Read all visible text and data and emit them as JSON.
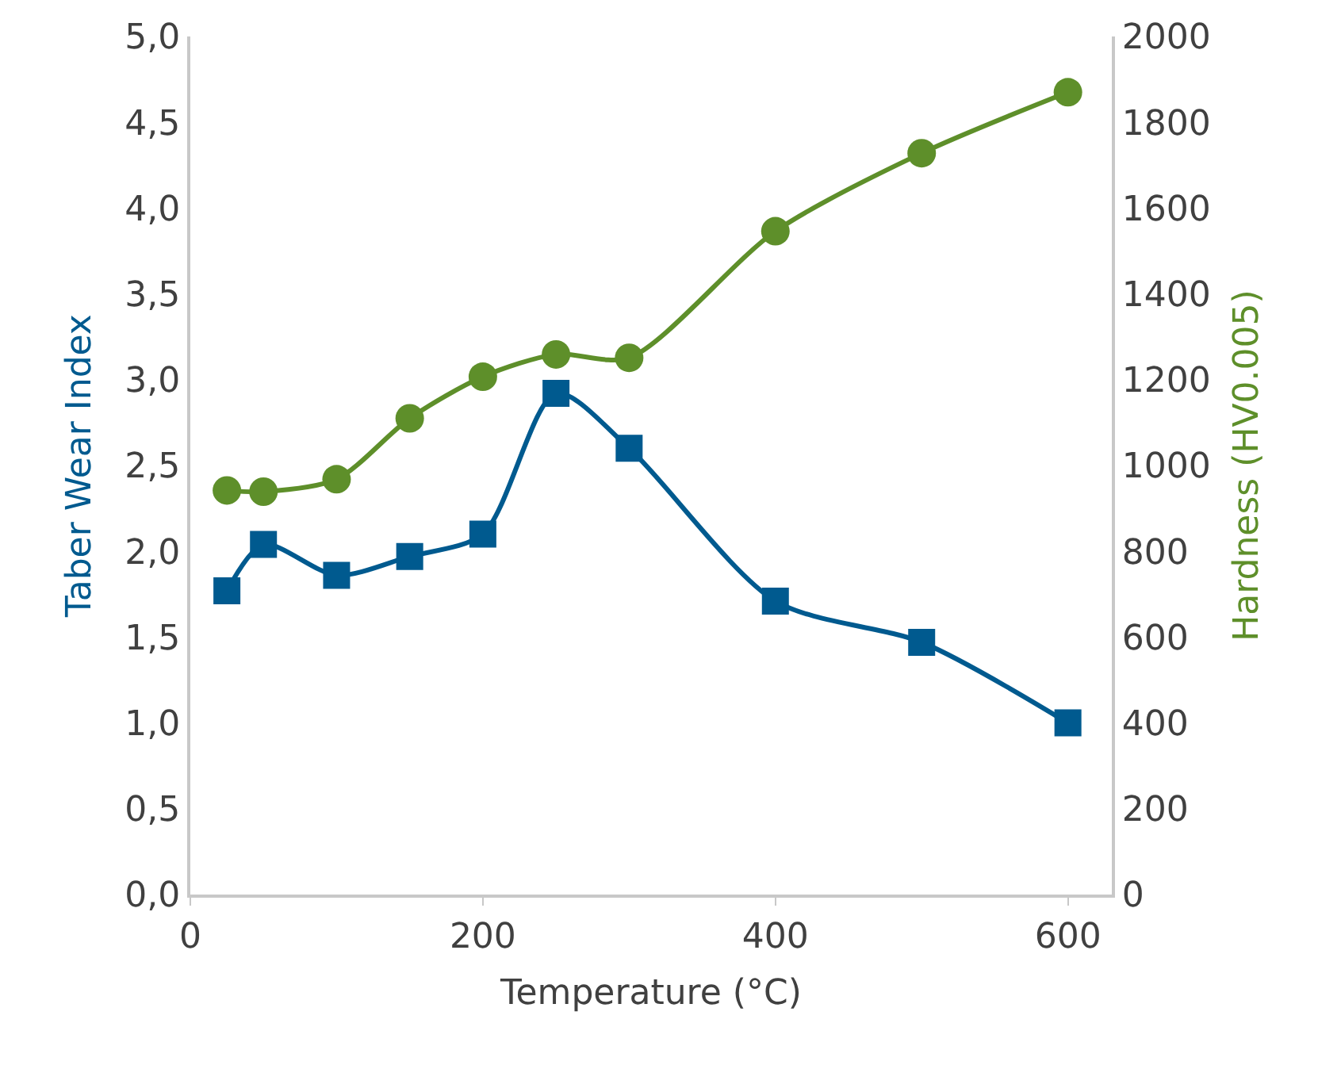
{
  "chart_data": {
    "type": "line",
    "xlabel": "Temperature (°C)",
    "ylabel": "Taber Wear Index",
    "y2label": "Hardness (HV0.005)",
    "xlim": [
      0,
      630
    ],
    "xticks": [
      0,
      200,
      400,
      600
    ],
    "ylim": [
      0,
      5
    ],
    "yticks": [
      {
        "value": 0,
        "label": "0,0"
      },
      {
        "value": 0.5,
        "label": "0,5"
      },
      {
        "value": 1,
        "label": "1,0"
      },
      {
        "value": 1.5,
        "label": "1,5"
      },
      {
        "value": 2,
        "label": "2,0"
      },
      {
        "value": 2.5,
        "label": "2,5"
      },
      {
        "value": 3,
        "label": "3,0"
      },
      {
        "value": 3.5,
        "label": "3,5"
      },
      {
        "value": 4,
        "label": "4,0"
      },
      {
        "value": 4.5,
        "label": "4,5"
      },
      {
        "value": 5,
        "label": "5,0"
      }
    ],
    "y2lim": [
      0,
      2000
    ],
    "y2ticks": [
      0,
      200,
      400,
      600,
      800,
      1000,
      1200,
      1400,
      1600,
      1800,
      2000
    ],
    "x": [
      25,
      50,
      100,
      150,
      200,
      250,
      300,
      400,
      500,
      600
    ],
    "legend": false,
    "series": [
      {
        "color": "#005a8f",
        "marker": "square",
        "values": [
          1.77,
          2.04,
          1.86,
          1.97,
          2.1,
          2.92,
          2.6,
          1.71,
          1.47,
          1.0
        ]
      },
      {
        "color": "#5e8f2a",
        "marker": "circle",
        "axis": "y2",
        "values": [
          942,
          939,
          968,
          1110,
          1207,
          1259,
          1251,
          1546,
          1728,
          1870
        ]
      }
    ]
  }
}
